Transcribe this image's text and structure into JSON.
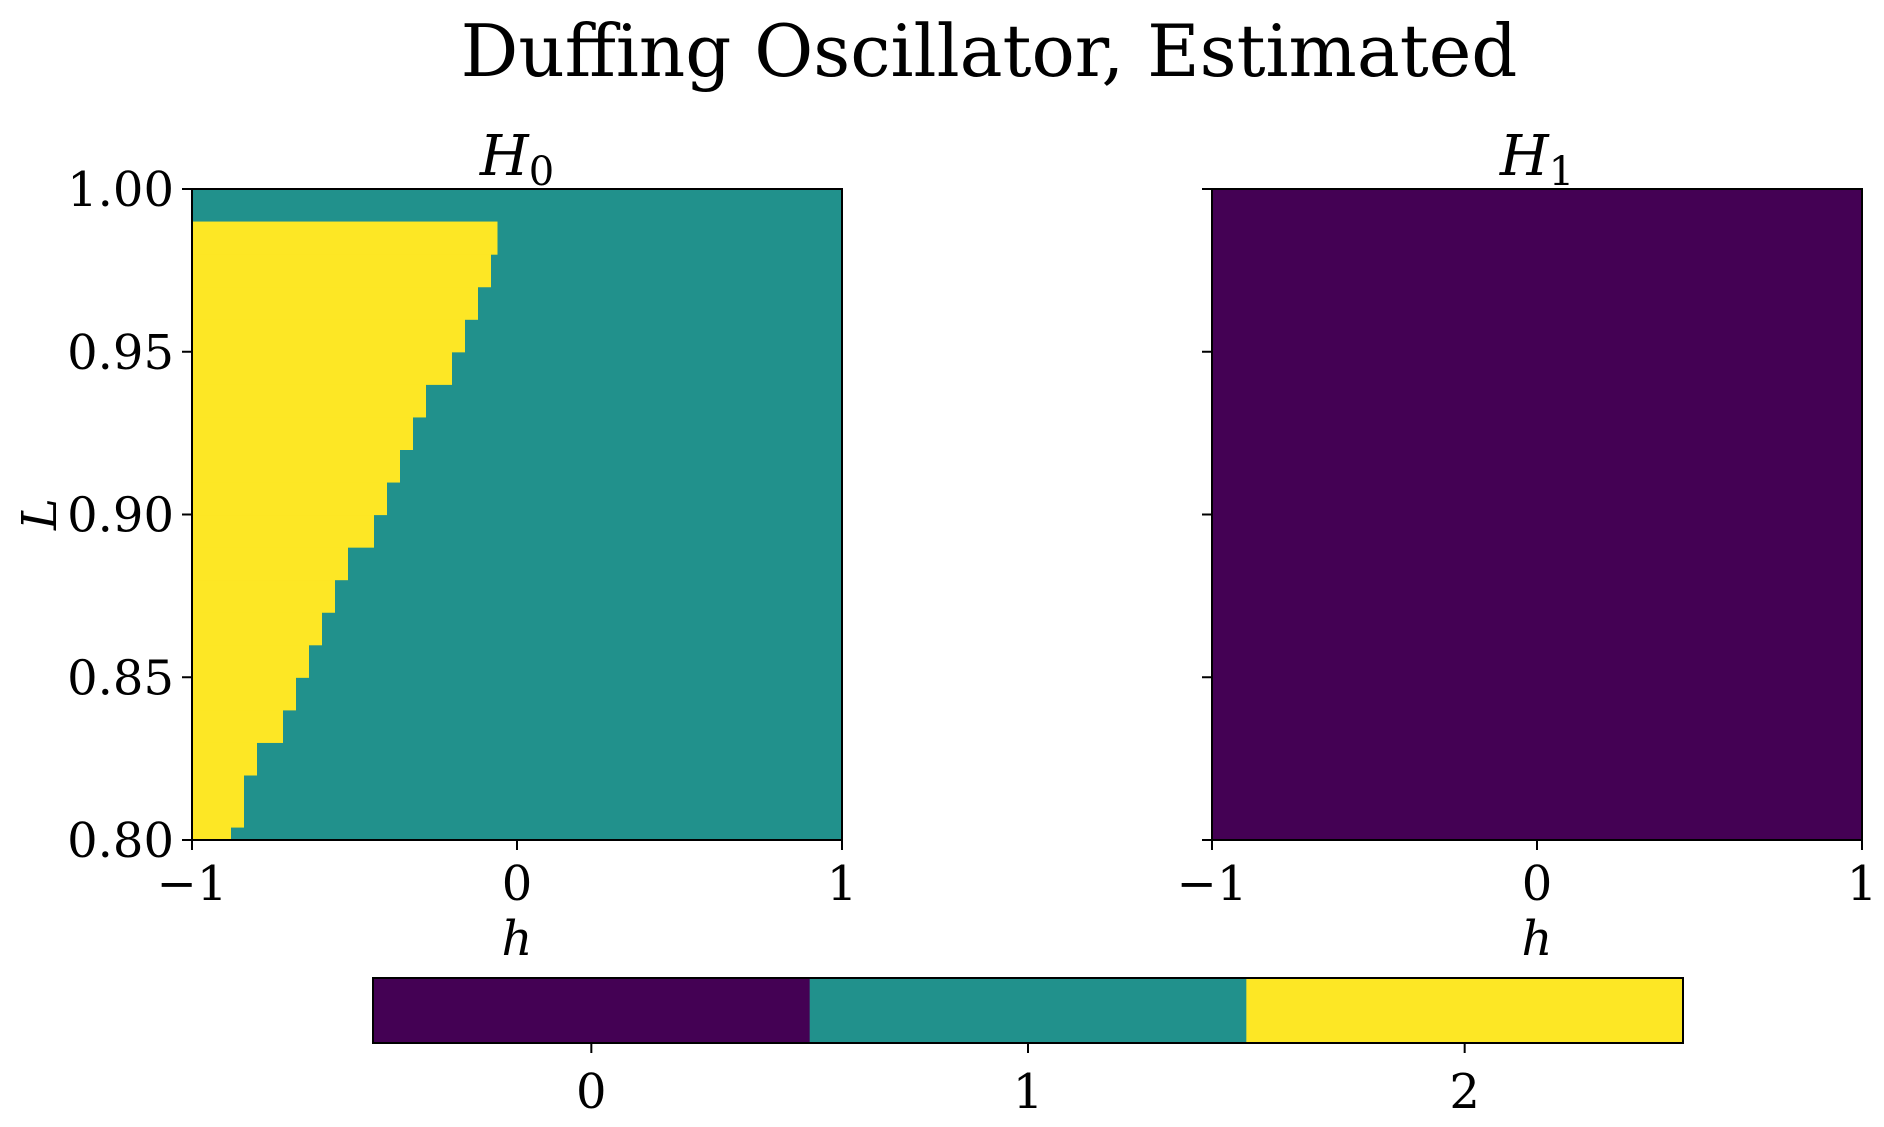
{
  "chart_data": {
    "type": "heatmap",
    "title": "Duffing Oscillator, Estimated",
    "palette": {
      "0": "#440154",
      "1": "#21918c",
      "2": "#fde725"
    },
    "panels": [
      {
        "id": "h0",
        "title": "H",
        "title_subscript": "0",
        "xlabel": "h",
        "ylabel": "L",
        "xlim": [
          -1,
          1
        ],
        "ylim": [
          0.8,
          1.0
        ],
        "xticks": [
          -1,
          0,
          1
        ],
        "xtick_labels": [
          "−1",
          "0",
          "1"
        ],
        "yticks": [
          0.8,
          0.85,
          0.9,
          0.95,
          1.0
        ],
        "ytick_labels": [
          "0.80",
          "0.85",
          "0.90",
          "0.95",
          "1.00"
        ],
        "background_value": 1,
        "region_value": 2,
        "region_boundary": [
          {
            "L_from": 0.8,
            "L_to": 0.804,
            "h_edge": -0.88
          },
          {
            "L_from": 0.804,
            "L_to": 0.82,
            "h_edge": -0.84
          },
          {
            "L_from": 0.82,
            "L_to": 0.83,
            "h_edge": -0.8
          },
          {
            "L_from": 0.83,
            "L_to": 0.84,
            "h_edge": -0.72
          },
          {
            "L_from": 0.84,
            "L_to": 0.85,
            "h_edge": -0.68
          },
          {
            "L_from": 0.85,
            "L_to": 0.86,
            "h_edge": -0.64
          },
          {
            "L_from": 0.86,
            "L_to": 0.87,
            "h_edge": -0.6
          },
          {
            "L_from": 0.87,
            "L_to": 0.88,
            "h_edge": -0.56
          },
          {
            "L_from": 0.88,
            "L_to": 0.89,
            "h_edge": -0.52
          },
          {
            "L_from": 0.89,
            "L_to": 0.9,
            "h_edge": -0.44
          },
          {
            "L_from": 0.9,
            "L_to": 0.91,
            "h_edge": -0.4
          },
          {
            "L_from": 0.91,
            "L_to": 0.92,
            "h_edge": -0.36
          },
          {
            "L_from": 0.92,
            "L_to": 0.93,
            "h_edge": -0.32
          },
          {
            "L_from": 0.93,
            "L_to": 0.94,
            "h_edge": -0.28
          },
          {
            "L_from": 0.94,
            "L_to": 0.95,
            "h_edge": -0.2
          },
          {
            "L_from": 0.95,
            "L_to": 0.96,
            "h_edge": -0.16
          },
          {
            "L_from": 0.96,
            "L_to": 0.97,
            "h_edge": -0.12
          },
          {
            "L_from": 0.97,
            "L_to": 0.98,
            "h_edge": -0.08
          },
          {
            "L_from": 0.98,
            "L_to": 0.99,
            "h_edge": -0.06
          }
        ]
      },
      {
        "id": "h1",
        "title": "H",
        "title_subscript": "1",
        "xlabel": "h",
        "xlim": [
          -1,
          1
        ],
        "ylim": [
          0.8,
          1.0
        ],
        "xticks": [
          -1,
          0,
          1
        ],
        "xtick_labels": [
          "−1",
          "0",
          "1"
        ],
        "yticks": [
          0.8,
          0.85,
          0.9,
          0.95,
          1.0
        ],
        "background_value": 0
      }
    ],
    "colorbar": {
      "orientation": "horizontal",
      "placement": "bottom-center",
      "categories": [
        0,
        1,
        2
      ],
      "tick_labels": [
        "0",
        "1",
        "2"
      ]
    }
  }
}
